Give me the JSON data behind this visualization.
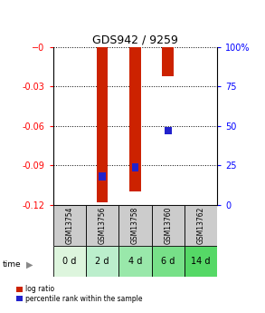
{
  "title": "GDS942 / 9259",
  "samples": [
    "GSM13754",
    "GSM13756",
    "GSM13758",
    "GSM13760",
    "GSM13762"
  ],
  "timepoints": [
    "0 d",
    "2 d",
    "4 d",
    "6 d",
    "14 d"
  ],
  "log_ratios": [
    0.0,
    -0.118,
    -0.11,
    -0.022,
    0.0
  ],
  "percentile_ranks_pct": [
    null,
    18,
    24,
    47,
    null
  ],
  "bar_color": "#cc2200",
  "pct_color": "#2222cc",
  "ylim_left": [
    -0.12,
    0.0
  ],
  "ylim_right": [
    0,
    100
  ],
  "yticks_left": [
    0.0,
    -0.03,
    -0.06,
    -0.09,
    -0.12
  ],
  "yticks_right": [
    0,
    25,
    50,
    75,
    100
  ],
  "bar_width": 0.35,
  "time_colors": [
    "#ddf5dd",
    "#bbeecc",
    "#99e8aa",
    "#77e088",
    "#55d866"
  ]
}
